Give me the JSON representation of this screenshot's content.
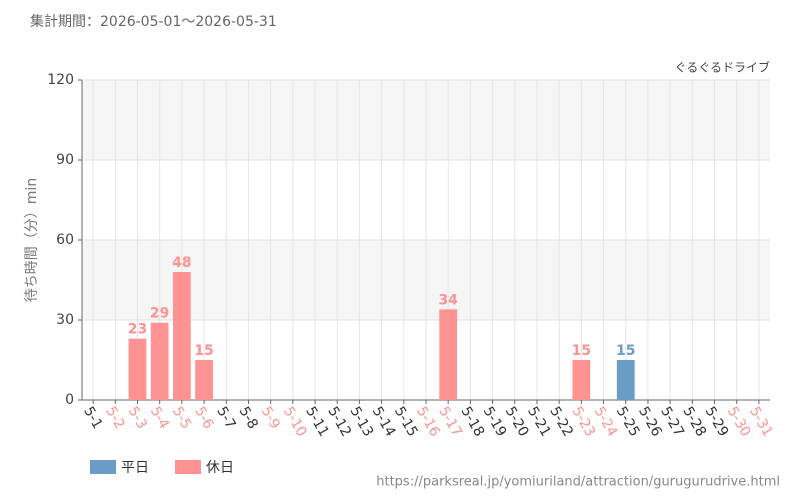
{
  "chart_data": {
    "type": "bar",
    "title": "集計期間：2026-05-01～2026-05-31",
    "subtitle": "ぐるぐるドライブ",
    "y_label": "待ち時間（分）min",
    "source": "https://parksreal.jp/yomiuriland/attraction/gurugurudrive.html",
    "categories": [
      "5-1",
      "5-2",
      "5-3",
      "5-4",
      "5-5",
      "5-6",
      "5-7",
      "5-8",
      "5-9",
      "5-10",
      "5-11",
      "5-12",
      "5-13",
      "5-14",
      "5-15",
      "5-16",
      "5-17",
      "5-18",
      "5-19",
      "5-20",
      "5-21",
      "5-22",
      "5-23",
      "5-24",
      "5-25",
      "5-26",
      "5-27",
      "5-28",
      "5-29",
      "5-30",
      "5-31"
    ],
    "category_series": [
      0,
      1,
      1,
      1,
      1,
      1,
      0,
      0,
      1,
      1,
      0,
      0,
      0,
      0,
      0,
      1,
      1,
      0,
      0,
      0,
      0,
      0,
      1,
      1,
      0,
      0,
      0,
      0,
      0,
      1,
      1
    ],
    "series": [
      {
        "name": "平日",
        "color": "#6a9cc6",
        "values": [
          null,
          null,
          null,
          null,
          null,
          null,
          null,
          null,
          null,
          null,
          null,
          null,
          null,
          null,
          null,
          null,
          null,
          null,
          null,
          null,
          null,
          null,
          null,
          null,
          15,
          null,
          null,
          null,
          null,
          null,
          null
        ]
      },
      {
        "name": "休日",
        "color": "#ff9393",
        "values": [
          null,
          null,
          23,
          29,
          48,
          15,
          null,
          null,
          null,
          null,
          null,
          null,
          null,
          null,
          null,
          null,
          34,
          null,
          null,
          null,
          null,
          null,
          15,
          null,
          null,
          null,
          null,
          null,
          null,
          null,
          null
        ]
      }
    ],
    "ylim": [
      0,
      120
    ],
    "yticks": [
      0,
      30,
      60,
      90,
      120
    ],
    "grid": true,
    "legend": "bottom-left"
  }
}
